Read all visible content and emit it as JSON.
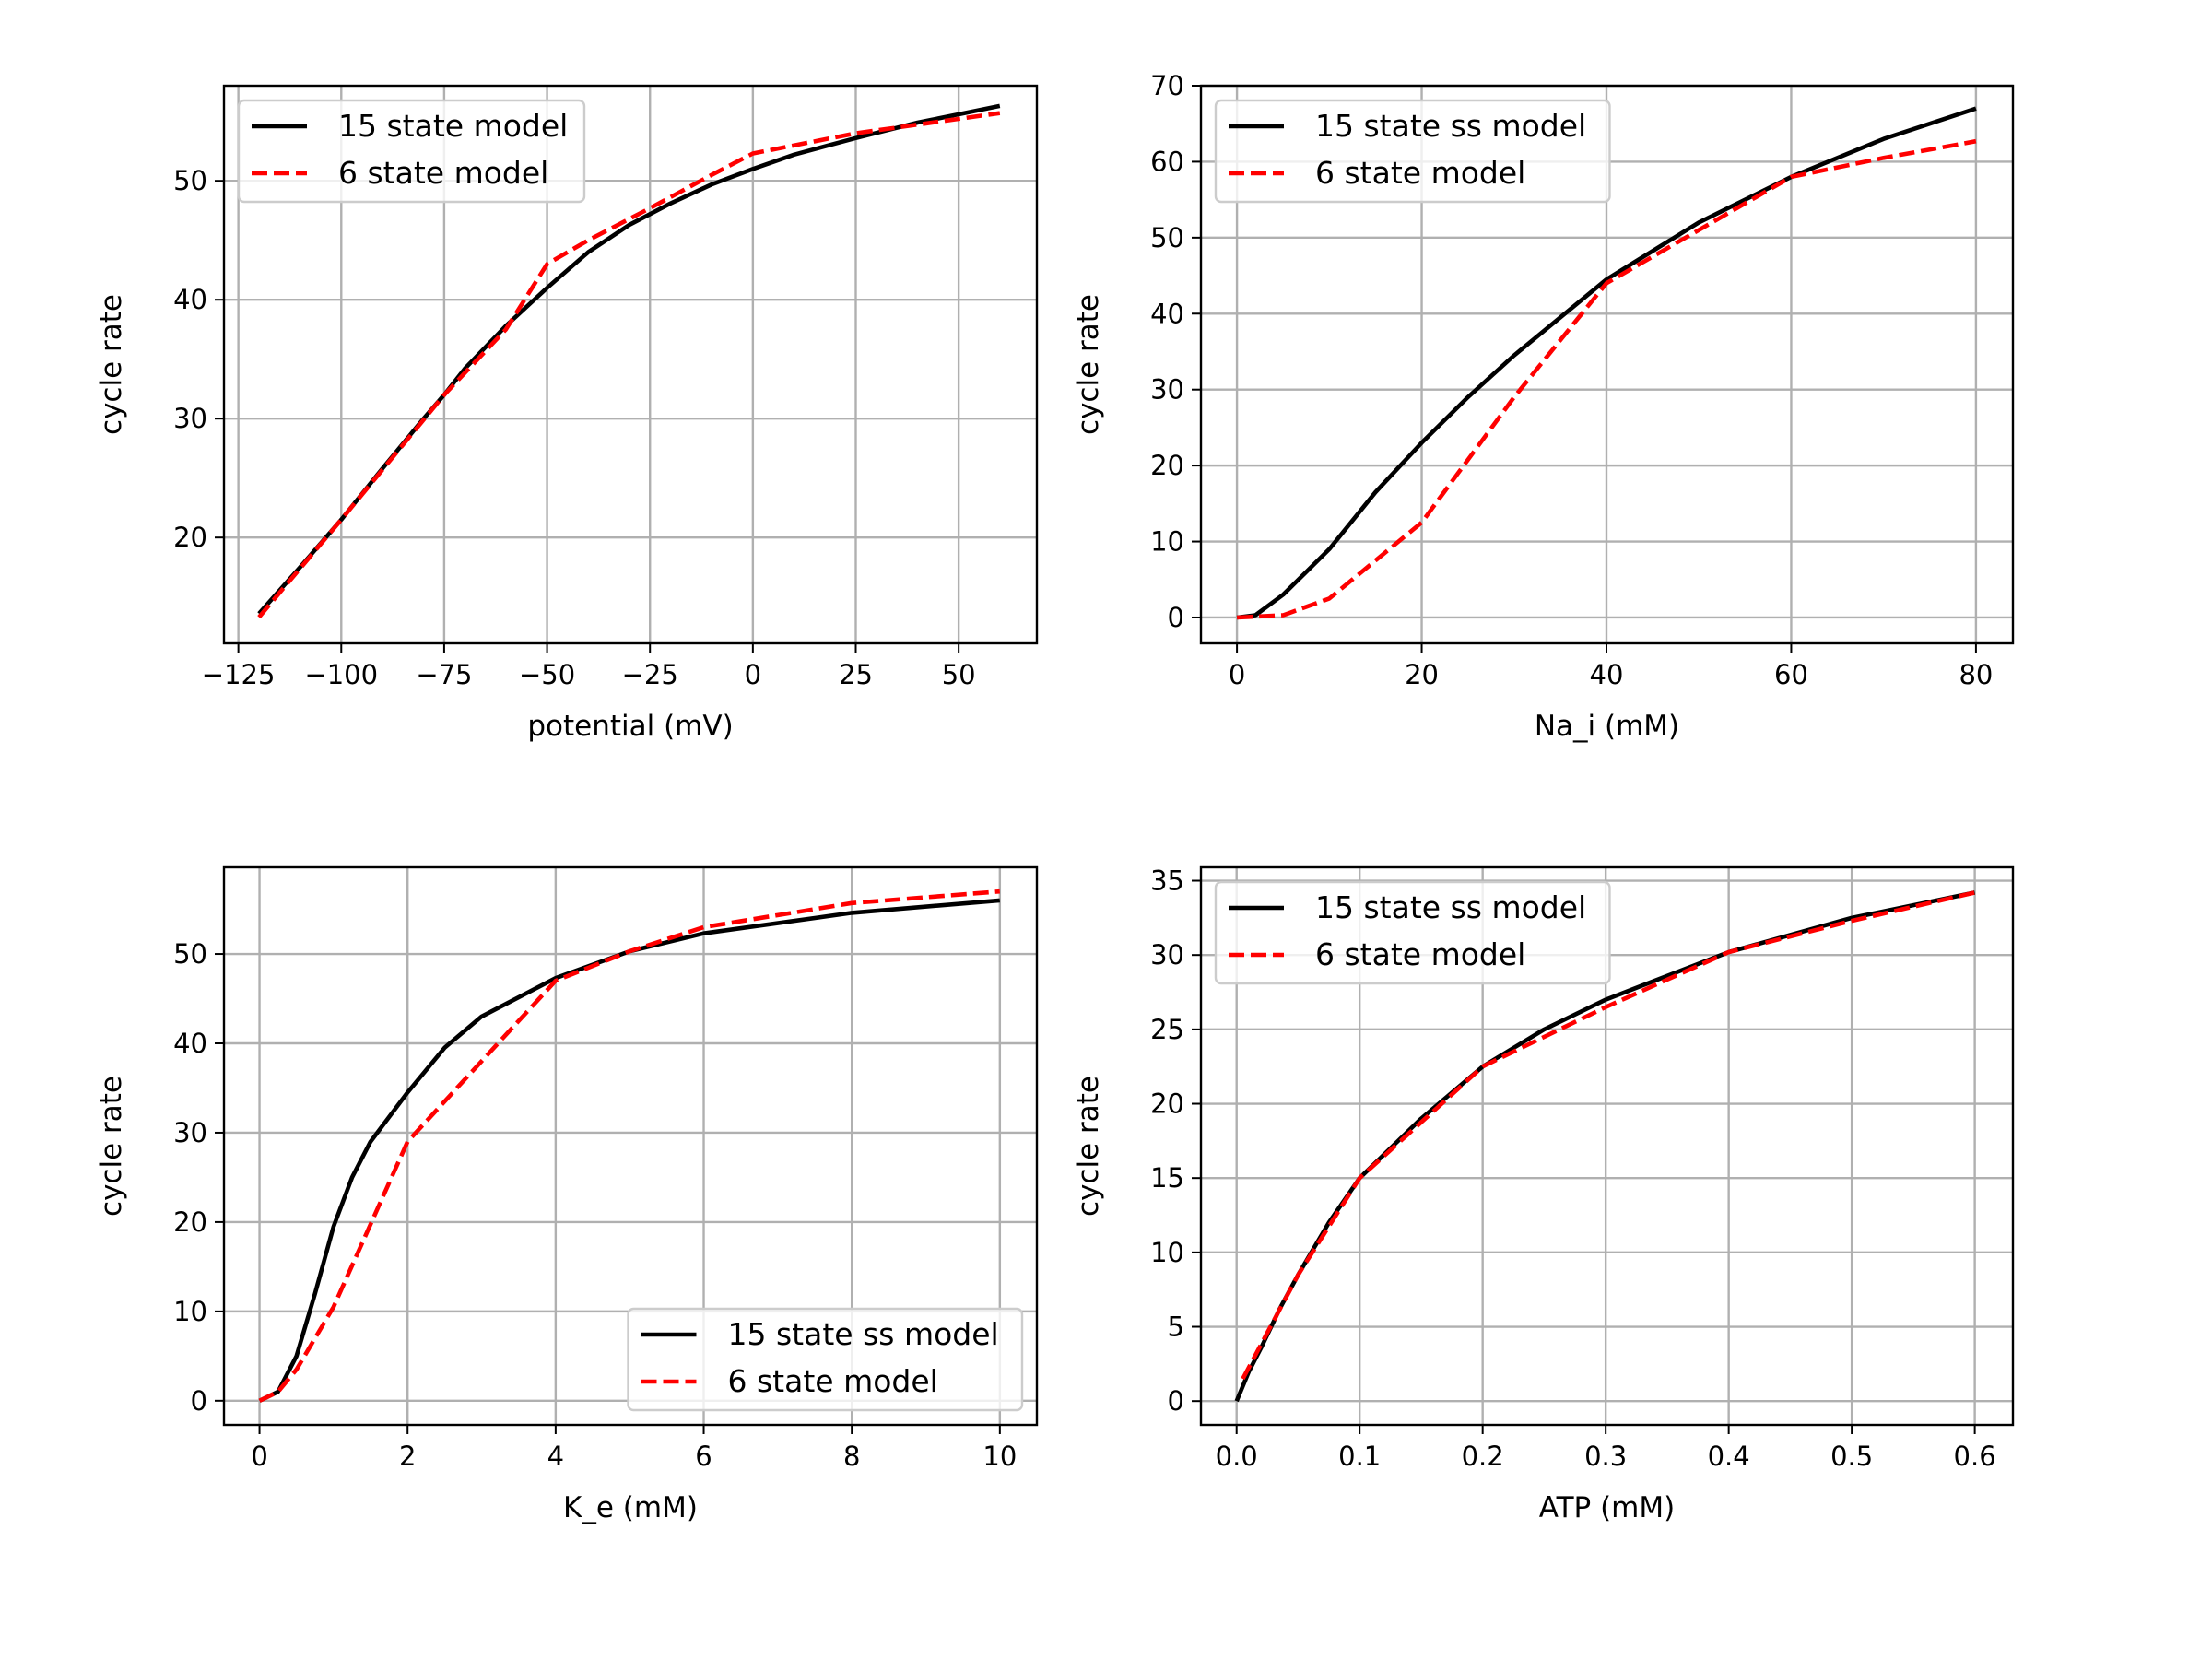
{
  "chart_data": [
    {
      "type": "line",
      "xlabel": "potential (mV)",
      "ylabel": "cycle rate",
      "xlim": [
        -128.5,
        69
      ],
      "ylim": [
        11.1,
        58
      ],
      "xticks": [
        -125,
        -100,
        -75,
        -50,
        -25,
        0,
        25,
        50
      ],
      "xtick_labels": [
        "−125",
        "−100",
        "−75",
        "−50",
        "−25",
        "0",
        "25",
        "50"
      ],
      "yticks": [
        20,
        30,
        40,
        50
      ],
      "ytick_labels": [
        "20",
        "30",
        "40",
        "50"
      ],
      "grid": true,
      "legend_loc": "upper-left",
      "series": [
        {
          "name": "15 state model",
          "color": "#000000",
          "style": "solid",
          "x": [
            -120,
            -110,
            -100,
            -90,
            -80,
            -75,
            -70,
            -60,
            -50,
            -40,
            -30,
            -25,
            -20,
            -10,
            0,
            10,
            25,
            40,
            50,
            60
          ],
          "y": [
            13.6,
            17.5,
            21.5,
            25.8,
            30,
            32,
            34.2,
            37.8,
            41,
            44,
            46.3,
            47.2,
            48.1,
            49.7,
            51,
            52.2,
            53.6,
            54.9,
            55.6,
            56.3
          ]
        },
        {
          "name": "6 state model",
          "color": "#ff0000",
          "style": "dashed",
          "x": [
            -120,
            -100,
            -75,
            -60,
            -50,
            -40,
            -25,
            -10,
            0,
            25,
            60
          ],
          "y": [
            13.3,
            21.5,
            32,
            37.5,
            43,
            45,
            47.7,
            50.5,
            52.3,
            54,
            55.7
          ]
        }
      ]
    },
    {
      "type": "line",
      "xlabel": "Na_i (mM)",
      "ylabel": "cycle rate",
      "xlim": [
        -3.9,
        84
      ],
      "ylim": [
        -3.4,
        70
      ],
      "xticks": [
        0,
        20,
        40,
        60,
        80
      ],
      "xtick_labels": [
        "0",
        "20",
        "40",
        "60",
        "80"
      ],
      "yticks": [
        0,
        10,
        20,
        30,
        40,
        50,
        60,
        70
      ],
      "ytick_labels": [
        "0",
        "10",
        "20",
        "30",
        "40",
        "50",
        "60",
        "70"
      ],
      "grid": true,
      "legend_loc": "upper-left",
      "series": [
        {
          "name": "15 state ss model",
          "color": "#000000",
          "style": "solid",
          "x": [
            0,
            2,
            5,
            7.5,
            10,
            15,
            20,
            25,
            30,
            40,
            50,
            60,
            70,
            80
          ],
          "y": [
            0,
            0.3,
            3,
            6,
            9,
            16.5,
            23,
            29,
            34.5,
            44.5,
            52,
            58,
            63,
            67
          ]
        },
        {
          "name": "6 state model",
          "color": "#ff0000",
          "style": "dashed",
          "x": [
            0,
            5,
            10,
            20,
            30,
            40,
            50,
            60,
            70,
            80
          ],
          "y": [
            0,
            0.3,
            2.5,
            12.5,
            29,
            44,
            51,
            58,
            60.5,
            62.7
          ]
        }
      ]
    },
    {
      "type": "line",
      "xlabel": "K_e (mM)",
      "ylabel": "cycle rate",
      "xlim": [
        -0.48,
        10.5
      ],
      "ylim": [
        -2.7,
        59.7
      ],
      "xticks": [
        0,
        2,
        4,
        6,
        8,
        10
      ],
      "xtick_labels": [
        "0",
        "2",
        "4",
        "6",
        "8",
        "10"
      ],
      "yticks": [
        0,
        10,
        20,
        30,
        40,
        50
      ],
      "ytick_labels": [
        "0",
        "10",
        "20",
        "30",
        "40",
        "50"
      ],
      "grid": true,
      "legend_loc": "lower-right",
      "series": [
        {
          "name": "15 state ss model",
          "color": "#000000",
          "style": "solid",
          "x": [
            0,
            0.25,
            0.5,
            0.75,
            1,
            1.25,
            1.5,
            2,
            2.5,
            3,
            4,
            5,
            6,
            8,
            10
          ],
          "y": [
            0,
            1,
            5,
            12,
            19.5,
            25,
            29,
            34.5,
            39.5,
            43,
            47.3,
            50.3,
            52.3,
            54.6,
            56
          ]
        },
        {
          "name": "6 state model",
          "color": "#ff0000",
          "style": "dashed",
          "x": [
            0,
            0.25,
            0.5,
            1,
            2,
            3,
            4,
            5,
            6,
            8,
            10
          ],
          "y": [
            0,
            1,
            3.5,
            10.5,
            29,
            38,
            47,
            50.3,
            53,
            55.7,
            57
          ]
        }
      ]
    },
    {
      "type": "line",
      "xlabel": "ATP (mM)",
      "ylabel": "cycle rate",
      "xlim": [
        -0.029,
        0.631
      ],
      "ylim": [
        -1.6,
        35.9
      ],
      "xticks": [
        0,
        0.1,
        0.2,
        0.3,
        0.4,
        0.5,
        0.6
      ],
      "xtick_labels": [
        "0.0",
        "0.1",
        "0.2",
        "0.3",
        "0.4",
        "0.5",
        "0.6"
      ],
      "yticks": [
        0,
        5,
        10,
        15,
        20,
        25,
        30,
        35
      ],
      "ytick_labels": [
        "0",
        "5",
        "10",
        "15",
        "20",
        "25",
        "30",
        "35"
      ],
      "grid": true,
      "legend_loc": "upper-left",
      "series": [
        {
          "name": "15 state ss model",
          "color": "#000000",
          "style": "solid",
          "x": [
            0,
            0.01,
            0.02,
            0.035,
            0.05,
            0.075,
            0.1,
            0.15,
            0.2,
            0.25,
            0.3,
            0.4,
            0.5,
            0.6
          ],
          "y": [
            0,
            2,
            3.6,
            6.2,
            8.5,
            12,
            15,
            19,
            22.5,
            25,
            27,
            30.2,
            32.5,
            34.2
          ]
        },
        {
          "name": "6 state model",
          "color": "#ff0000",
          "style": "dashed",
          "x": [
            0.005,
            0.05,
            0.1,
            0.2,
            0.3,
            0.4,
            0.5,
            0.6
          ],
          "y": [
            1.5,
            8.5,
            15,
            22.5,
            26.5,
            30.2,
            32.3,
            34.2
          ]
        }
      ]
    }
  ]
}
